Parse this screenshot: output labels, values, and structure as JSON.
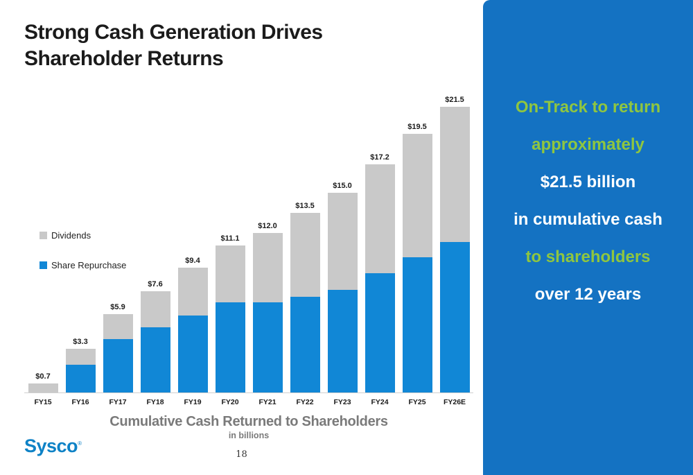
{
  "colors": {
    "panel_blue": "#1472c2",
    "bar_blue": "#1187d6",
    "bar_gray": "#c9c9c9",
    "accent_green": "#8fc640",
    "title_black": "#1b1b1b",
    "caption_gray": "#7a7a7a",
    "logo_blue": "#0e82c6"
  },
  "title": {
    "line1": "Strong Cash Generation Drives",
    "line2": "Shareholder Returns"
  },
  "chart_data": {
    "type": "bar",
    "stacked": true,
    "categories": [
      "FY15",
      "FY16",
      "FY17",
      "FY18",
      "FY19",
      "FY20",
      "FY21",
      "FY22",
      "FY23",
      "FY24",
      "FY25",
      "FY26E"
    ],
    "totals": [
      0.7,
      3.3,
      5.9,
      7.6,
      9.4,
      11.1,
      12.0,
      13.5,
      15.0,
      17.2,
      19.5,
      21.5
    ],
    "total_labels": [
      "$0.7",
      "$3.3",
      "$5.9",
      "$7.6",
      "$9.4",
      "$11.1",
      "$12.0",
      "$13.5",
      "$15.0",
      "$17.2",
      "$19.5",
      "$21.5"
    ],
    "series": [
      {
        "name": "Share Repurchase",
        "color": "#1187d6",
        "values": [
          0.0,
          2.1,
          4.0,
          4.9,
          5.8,
          6.8,
          6.8,
          7.2,
          7.7,
          9.0,
          10.2,
          11.3
        ]
      },
      {
        "name": "Dividends",
        "color": "#c9c9c9",
        "values": [
          0.7,
          1.2,
          1.9,
          2.7,
          3.6,
          4.3,
          5.2,
          6.3,
          7.3,
          8.2,
          9.3,
          10.2
        ]
      }
    ],
    "legend": [
      "Dividends",
      "Share Repurchase"
    ],
    "legend_position": "middle-left",
    "title": "Cumulative Cash Returned to Shareholders",
    "subtitle": "in billions",
    "xlabel": "",
    "ylabel": "",
    "ylim": [
      0,
      22
    ],
    "grid": false,
    "value_labels": "above each bar, total in $ billions"
  },
  "caption": {
    "title": "Cumulative Cash Returned to Shareholders",
    "subtitle": "in billions"
  },
  "panel": {
    "lines": [
      {
        "text": "On-Track to return",
        "style": "green"
      },
      {
        "text": "approximately",
        "style": "green"
      },
      {
        "text": "$21.5 billion",
        "style": "white"
      },
      {
        "text": "in cumulative cash",
        "style": "white"
      },
      {
        "text": "to shareholders",
        "style": "green"
      },
      {
        "text": "over 12 years",
        "style": "white"
      }
    ]
  },
  "footer": {
    "logo_text": "Sysco",
    "logo_mark": "®",
    "page_number": "18"
  }
}
